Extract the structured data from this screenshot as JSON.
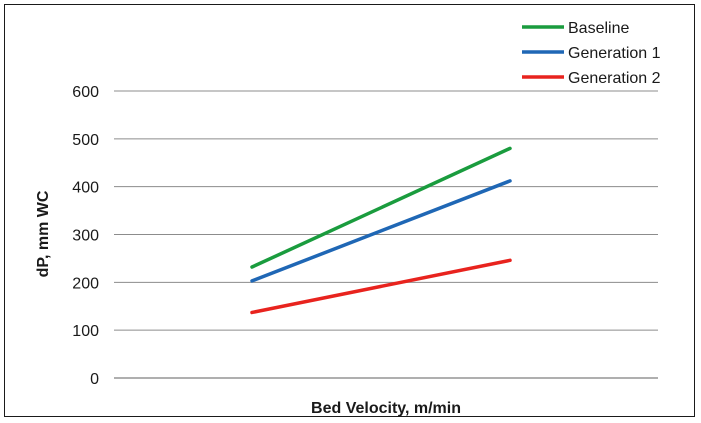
{
  "chart_data": {
    "type": "line",
    "title": "",
    "xlabel": "Bed Velocity, m/min",
    "ylabel": "dP, mm WC",
    "ylim": [
      0,
      600
    ],
    "yticks": [
      "0",
      "100",
      "200",
      "300",
      "400",
      "500",
      "600"
    ],
    "grid": true,
    "legend_position": "top-right",
    "x": [
      1,
      2
    ],
    "series": [
      {
        "name": "Baseline",
        "color": "#1a9c3e",
        "values": [
          232,
          480
        ]
      },
      {
        "name": "Generation 1",
        "color": "#1f67b5",
        "values": [
          203,
          412
        ]
      },
      {
        "name": "Generation 2",
        "color": "#e8231e",
        "values": [
          137,
          246
        ]
      }
    ]
  }
}
